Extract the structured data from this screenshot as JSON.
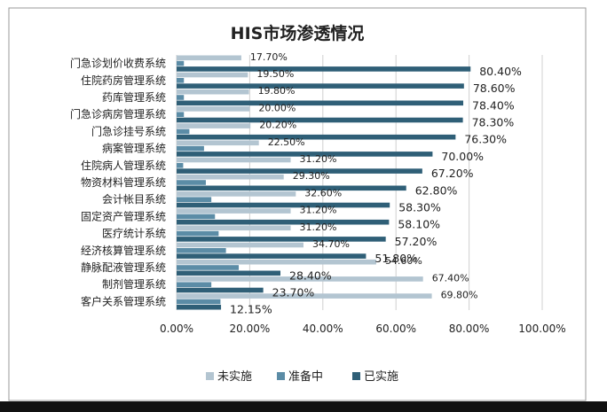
{
  "chart_data": {
    "type": "bar",
    "orientation": "horizontal",
    "title": "HIS市场渗透情况",
    "categories": [
      "门急诊划价收费系统",
      "住院药房管理系统",
      "药库管理系统",
      "门急诊病房管理系统",
      "门急诊挂号系统",
      "病案管理系统",
      "住院病人管理系统",
      "物资材料管理系统",
      "会计帐目系统",
      "固定资产管理系统",
      "医疗统计系统",
      "经济核算管理系统",
      "静脉配液管理系统",
      "制剂管理系统",
      "客户关系管理系统"
    ],
    "series": [
      {
        "name": "未实施",
        "color": "#b3c5d1",
        "values": [
          17.7,
          19.5,
          19.8,
          20.0,
          20.2,
          22.5,
          31.2,
          29.3,
          32.6,
          31.2,
          31.2,
          34.7,
          54.6,
          67.4,
          69.8
        ],
        "labels": [
          "17.70%",
          "19.50%",
          "19.80%",
          "20.00%",
          "20.20%",
          "22.50%",
          "31.20%",
          "29.30%",
          "32.60%",
          "31.20%",
          "31.20%",
          "34.70%",
          "54.60%",
          "67.40%",
          "69.80%"
        ]
      },
      {
        "name": "准备中",
        "color": "#5b8ca6",
        "values": [
          2.0,
          2.0,
          2.0,
          2.0,
          3.5,
          7.5,
          1.8,
          8.0,
          9.5,
          10.5,
          11.5,
          13.5,
          17.0,
          9.5,
          12.0
        ],
        "labels": []
      },
      {
        "name": "已实施",
        "color": "#2f5f77",
        "values": [
          80.4,
          78.6,
          78.4,
          78.3,
          76.3,
          70.0,
          67.2,
          62.8,
          58.3,
          58.1,
          57.2,
          51.8,
          28.4,
          23.7,
          12.15
        ],
        "labels": [
          "80.40%",
          "78.60%",
          "78.40%",
          "78.30%",
          "76.30%",
          "70.00%",
          "67.20%",
          "62.80%",
          "58.30%",
          "58.10%",
          "57.20%",
          "51.80%",
          "28.40%",
          "23.70%",
          "12.15%"
        ]
      }
    ],
    "xlim": [
      0,
      100
    ],
    "xticks": [
      "0.00%",
      "20.00%",
      "40.00%",
      "60.00%",
      "80.00%",
      "100.00%"
    ],
    "grid": true,
    "legend_position": "bottom"
  },
  "colors": {
    "gridline": "#d0d0d0",
    "frame": "#9a9a9a",
    "bottom_bar": "#111111"
  }
}
